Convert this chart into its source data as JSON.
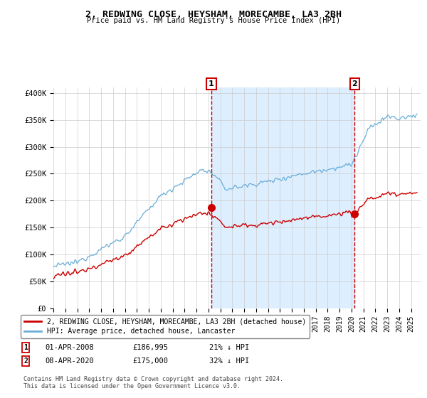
{
  "title": "2, REDWING CLOSE, HEYSHAM, MORECAMBE, LA3 2BH",
  "subtitle": "Price paid vs. HM Land Registry's House Price Index (HPI)",
  "hpi_color": "#6baed6",
  "price_color": "#cc0000",
  "shade_color": "#ddeeff",
  "sale1_year": 2008.25,
  "sale1_price": 186995,
  "sale2_year": 2020.27,
  "sale2_price": 175000,
  "legend_label_price": "2, REDWING CLOSE, HEYSHAM, MORECAMBE, LA3 2BH (detached house)",
  "legend_label_hpi": "HPI: Average price, detached house, Lancaster",
  "footer": "Contains HM Land Registry data © Crown copyright and database right 2024.\nThis data is licensed under the Open Government Licence v3.0.",
  "ylim_low": 0,
  "ylim_high": 410000,
  "yticks": [
    0,
    50000,
    100000,
    150000,
    200000,
    250000,
    300000,
    350000,
    400000
  ],
  "ytick_labels": [
    "£0",
    "£50K",
    "£100K",
    "£150K",
    "£200K",
    "£250K",
    "£300K",
    "£350K",
    "£400K"
  ],
  "background_color": "#ffffff",
  "grid_color": "#cccccc",
  "ann1_date": "01-APR-2008",
  "ann1_price": "£186,995",
  "ann1_pct": "21% ↓ HPI",
  "ann2_date": "08-APR-2020",
  "ann2_price": "£175,000",
  "ann2_pct": "32% ↓ HPI"
}
